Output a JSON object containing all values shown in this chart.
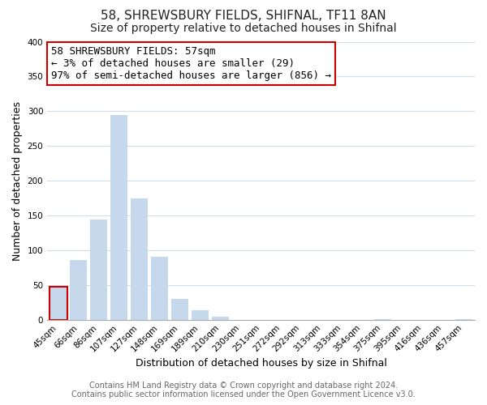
{
  "title": "58, SHREWSBURY FIELDS, SHIFNAL, TF11 8AN",
  "subtitle": "Size of property relative to detached houses in Shifnal",
  "xlabel": "Distribution of detached houses by size in Shifnal",
  "ylabel": "Number of detached properties",
  "footer_lines": [
    "Contains HM Land Registry data © Crown copyright and database right 2024.",
    "Contains public sector information licensed under the Open Government Licence v3.0."
  ],
  "bar_labels": [
    "45sqm",
    "66sqm",
    "86sqm",
    "107sqm",
    "127sqm",
    "148sqm",
    "169sqm",
    "189sqm",
    "210sqm",
    "230sqm",
    "251sqm",
    "272sqm",
    "292sqm",
    "313sqm",
    "333sqm",
    "354sqm",
    "375sqm",
    "395sqm",
    "416sqm",
    "436sqm",
    "457sqm"
  ],
  "bar_values": [
    47,
    86,
    144,
    295,
    175,
    91,
    30,
    14,
    4,
    0,
    0,
    0,
    0,
    0,
    0,
    0,
    1,
    0,
    0,
    0,
    1
  ],
  "bar_color": "#c5d8ec",
  "highlight_bar_index": 0,
  "highlight_color": "#cc0000",
  "ylim": [
    0,
    400
  ],
  "yticks": [
    0,
    50,
    100,
    150,
    200,
    250,
    300,
    350,
    400
  ],
  "annotation_box": {
    "text_lines": [
      "58 SHREWSBURY FIELDS: 57sqm",
      "← 3% of detached houses are smaller (29)",
      "97% of semi-detached houses are larger (856) →"
    ],
    "box_color": "white",
    "edge_color": "#cc0000"
  },
  "grid_color": "#d0dce8",
  "bg_color": "#ffffff",
  "plot_bg_color": "#ffffff",
  "title_fontsize": 11,
  "subtitle_fontsize": 10,
  "label_fontsize": 9,
  "tick_fontsize": 7.5,
  "footer_fontsize": 7,
  "annot_fontsize": 9
}
